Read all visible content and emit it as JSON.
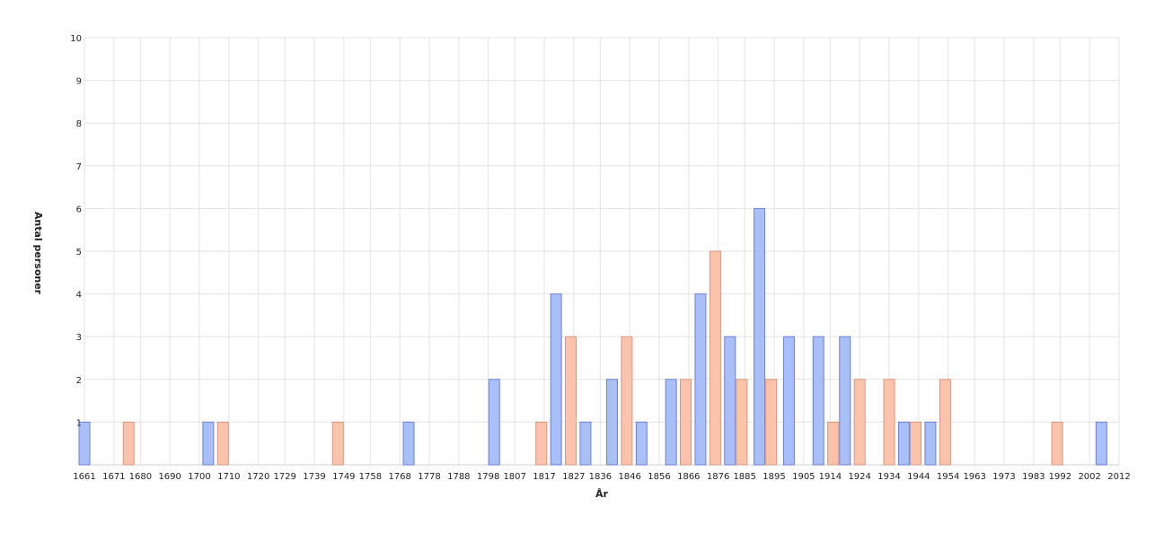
{
  "chart_data": {
    "type": "bar",
    "title": "",
    "xlabel": "År",
    "ylabel": "Antal personer",
    "ylim": [
      0,
      10
    ],
    "yticks": [
      1,
      2,
      3,
      4,
      5,
      6,
      7,
      8,
      9,
      10
    ],
    "x_range": [
      1661,
      2012
    ],
    "xticks": [
      "1661",
      "1671",
      "1680",
      "1690",
      "1700",
      "1710",
      "1720",
      "1729",
      "1739",
      "1749",
      "1758",
      "1768",
      "1778",
      "1788",
      "1798",
      "1807",
      "1817",
      "1827",
      "1836",
      "1846",
      "1856",
      "1866",
      "1876",
      "1885",
      "1895",
      "1905",
      "1914",
      "1924",
      "1934",
      "1944",
      "1954",
      "1963",
      "1973",
      "1983",
      "1992",
      "2002",
      "2012"
    ],
    "grid": true,
    "legend": "none",
    "colors": {
      "blue_fill": "#a9bff8",
      "blue_stroke": "#6f7fd0",
      "peach_fill": "#fcc3ac",
      "peach_stroke": "#d9967d",
      "grid": "#e3e3e3"
    },
    "series": [
      {
        "color": "blue",
        "points": [
          {
            "year": 1661,
            "value": 1
          },
          {
            "year": 1703,
            "value": 1
          },
          {
            "year": 1771,
            "value": 1
          },
          {
            "year": 1800,
            "value": 2
          },
          {
            "year": 1821,
            "value": 4
          },
          {
            "year": 1831,
            "value": 1
          },
          {
            "year": 1840,
            "value": 2
          },
          {
            "year": 1850,
            "value": 1
          },
          {
            "year": 1860,
            "value": 2
          },
          {
            "year": 1870,
            "value": 4
          },
          {
            "year": 1880,
            "value": 3
          },
          {
            "year": 1890,
            "value": 6
          },
          {
            "year": 1900,
            "value": 3
          },
          {
            "year": 1910,
            "value": 3
          },
          {
            "year": 1919,
            "value": 3
          },
          {
            "year": 1939,
            "value": 1
          },
          {
            "year": 1948,
            "value": 1
          },
          {
            "year": 2006,
            "value": 1
          }
        ]
      },
      {
        "color": "peach",
        "points": [
          {
            "year": 1676,
            "value": 1
          },
          {
            "year": 1708,
            "value": 1
          },
          {
            "year": 1747,
            "value": 1
          },
          {
            "year": 1816,
            "value": 1
          },
          {
            "year": 1826,
            "value": 3
          },
          {
            "year": 1845,
            "value": 3
          },
          {
            "year": 1865,
            "value": 2
          },
          {
            "year": 1875,
            "value": 5
          },
          {
            "year": 1884,
            "value": 2
          },
          {
            "year": 1894,
            "value": 2
          },
          {
            "year": 1915,
            "value": 1
          },
          {
            "year": 1924,
            "value": 2
          },
          {
            "year": 1934,
            "value": 2
          },
          {
            "year": 1943,
            "value": 1
          },
          {
            "year": 1953,
            "value": 2
          },
          {
            "year": 1991,
            "value": 1
          }
        ]
      }
    ]
  }
}
